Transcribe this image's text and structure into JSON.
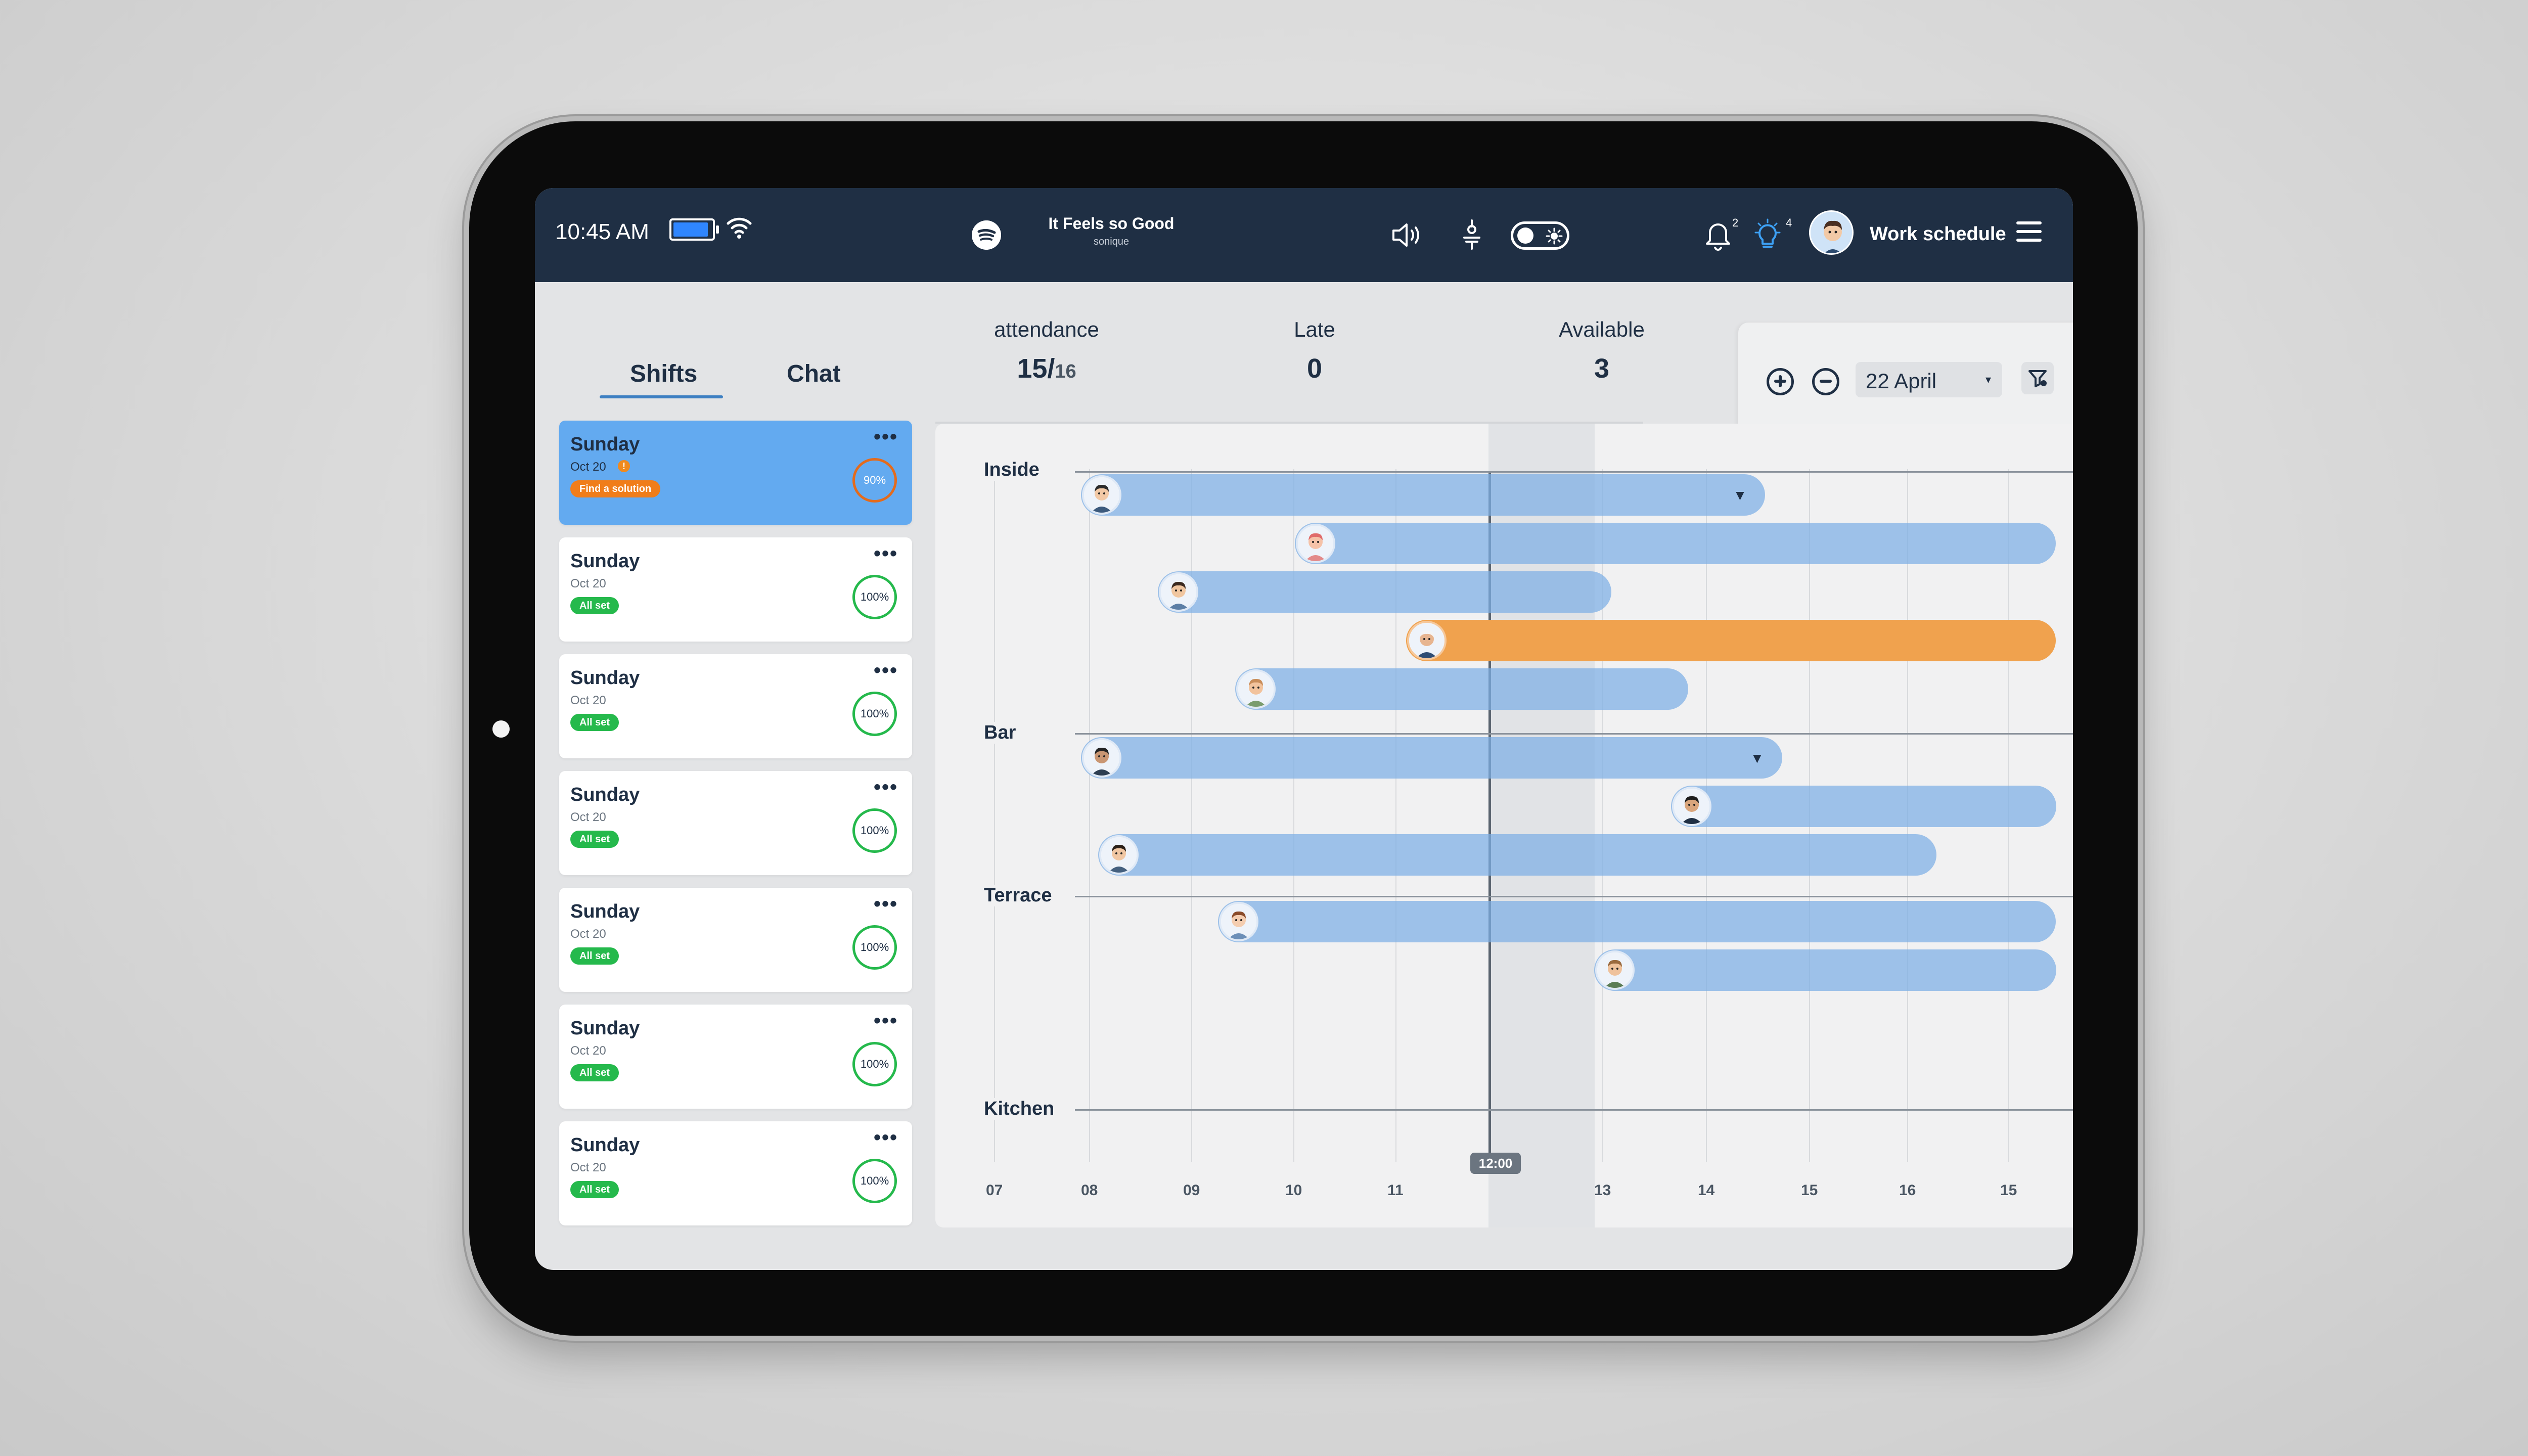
{
  "status_bar": {
    "time": "10:45 AM",
    "battery_level": 0.92,
    "now_playing": {
      "title": "It Feels so Good",
      "artist": "sonique"
    },
    "notifications_count": "2",
    "ideas_count": "4",
    "page_title": "Work schedule",
    "colors": {
      "bar_bg": "#1f2f44",
      "battery": "#2f86ff",
      "idea_icon": "#3da1f5"
    }
  },
  "tabs": [
    {
      "label": "Shifts",
      "active": true
    },
    {
      "label": "Chat",
      "active": false
    }
  ],
  "shift_cards": [
    {
      "day": "Sunday",
      "date": "Oct 20",
      "badge": "Find a solution",
      "progress": "90%",
      "status": "warning",
      "active": true
    },
    {
      "day": "Sunday",
      "date": "Oct 20",
      "badge": "All set",
      "progress": "100%",
      "status": "ok"
    },
    {
      "day": "Sunday",
      "date": "Oct 20",
      "badge": "All set",
      "progress": "100%",
      "status": "ok"
    },
    {
      "day": "Sunday",
      "date": "Oct 20",
      "badge": "All set",
      "progress": "100%",
      "status": "ok"
    },
    {
      "day": "Sunday",
      "date": "Oct 20",
      "badge": "All set",
      "progress": "100%",
      "status": "ok"
    },
    {
      "day": "Sunday",
      "date": "Oct 20",
      "badge": "All set",
      "progress": "100%",
      "status": "ok"
    },
    {
      "day": "Sunday",
      "date": "Oct 20",
      "badge": "All set",
      "progress": "100%",
      "status": "ok"
    }
  ],
  "card_more_label": "•••",
  "stats": {
    "attendance": {
      "label": "attendance",
      "value": "15/",
      "total": "16"
    },
    "late": {
      "label": "Late",
      "value": "0"
    },
    "available": {
      "label": "Available",
      "value": "3"
    }
  },
  "toolbar": {
    "date": "22 April",
    "date_caret": "▾"
  },
  "timeline": {
    "now_label": "12:00",
    "hours": [
      "07",
      "08",
      "09",
      "10",
      "11",
      "13",
      "14",
      "15",
      "16",
      "15"
    ],
    "sections": [
      {
        "name": "Inside"
      },
      {
        "name": "Bar"
      },
      {
        "name": "Terrace"
      },
      {
        "name": "Kitchen"
      }
    ],
    "shifts": [
      {
        "section": "Inside",
        "start": "08:00",
        "end": "14:40",
        "color": "blue",
        "expandable": true
      },
      {
        "section": "Inside",
        "start": "10:05",
        "end": "17:30",
        "color": "blue"
      },
      {
        "section": "Inside",
        "start": "08:45",
        "end": "13:10",
        "color": "blue"
      },
      {
        "section": "Inside",
        "start": "11:10",
        "end": "17:30",
        "color": "orange"
      },
      {
        "section": "Inside",
        "start": "09:30",
        "end": "13:55",
        "color": "blue"
      },
      {
        "section": "Bar",
        "start": "08:00",
        "end": "14:50",
        "color": "blue",
        "expandable": true
      },
      {
        "section": "Bar",
        "start": "13:45",
        "end": "17:30",
        "color": "blue"
      },
      {
        "section": "Bar",
        "start": "08:10",
        "end": "16:20",
        "color": "blue"
      },
      {
        "section": "Terrace",
        "start": "09:20",
        "end": "17:30",
        "color": "blue"
      },
      {
        "section": "Terrace",
        "start": "13:00",
        "end": "17:30",
        "color": "blue"
      }
    ],
    "bar_caret": "▼",
    "colors": {
      "blue": "#7dafe4",
      "orange": "#f0a24e"
    }
  }
}
